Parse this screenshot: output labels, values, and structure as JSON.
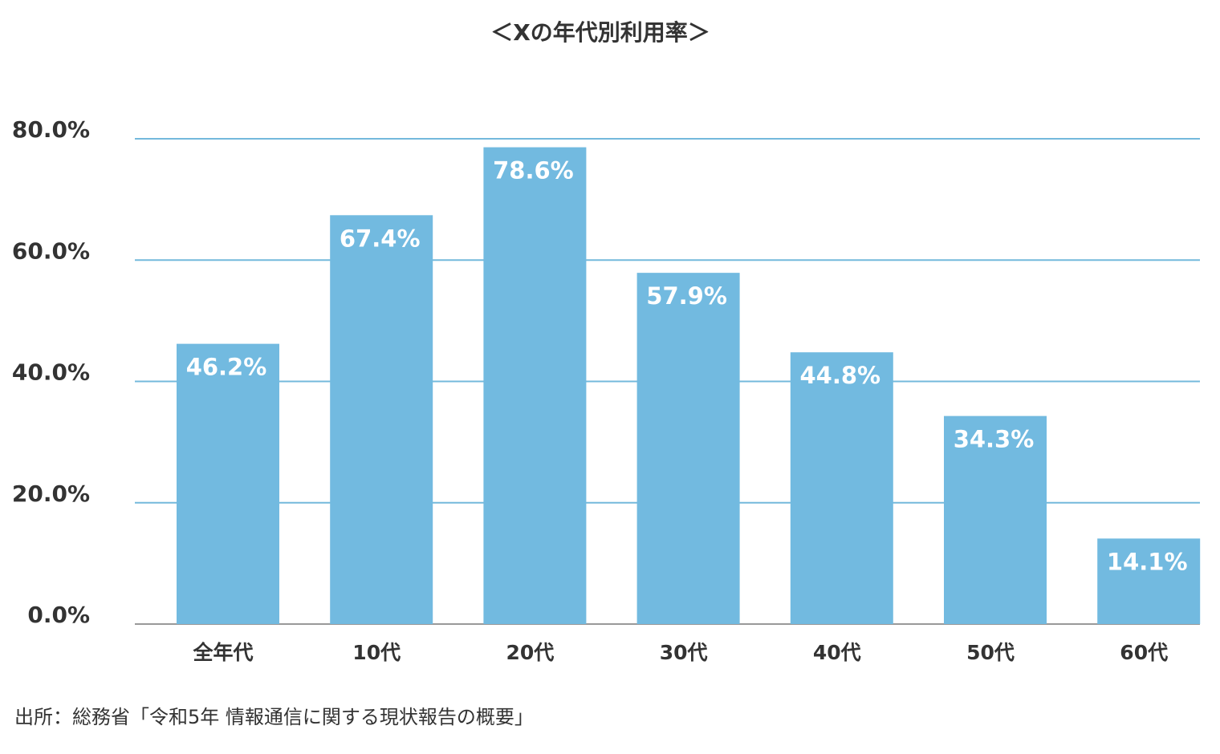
{
  "chart_data": {
    "type": "bar",
    "title": "＜Xの年代別利用率＞",
    "categories": [
      "全年代",
      "10代",
      "20代",
      "30代",
      "40代",
      "50代",
      "60代"
    ],
    "values": [
      46.2,
      67.4,
      78.6,
      57.9,
      44.8,
      34.3,
      14.1
    ],
    "value_labels": [
      "46.2%",
      "67.4%",
      "78.6%",
      "57.9%",
      "44.8%",
      "34.3%",
      "14.1%"
    ],
    "color": "#72bae0",
    "ylim": [
      0,
      80
    ],
    "yticks": [
      {
        "value": 0,
        "label": "0.0%"
      },
      {
        "value": 20,
        "label": "20.0%"
      },
      {
        "value": 40,
        "label": "40.0%"
      },
      {
        "value": 60,
        "label": "60.0%"
      },
      {
        "value": 80,
        "label": "80.0%"
      }
    ],
    "grid": true,
    "source": "出所：総務省「令和5年 情報通信に関する現状報告の概要」"
  }
}
